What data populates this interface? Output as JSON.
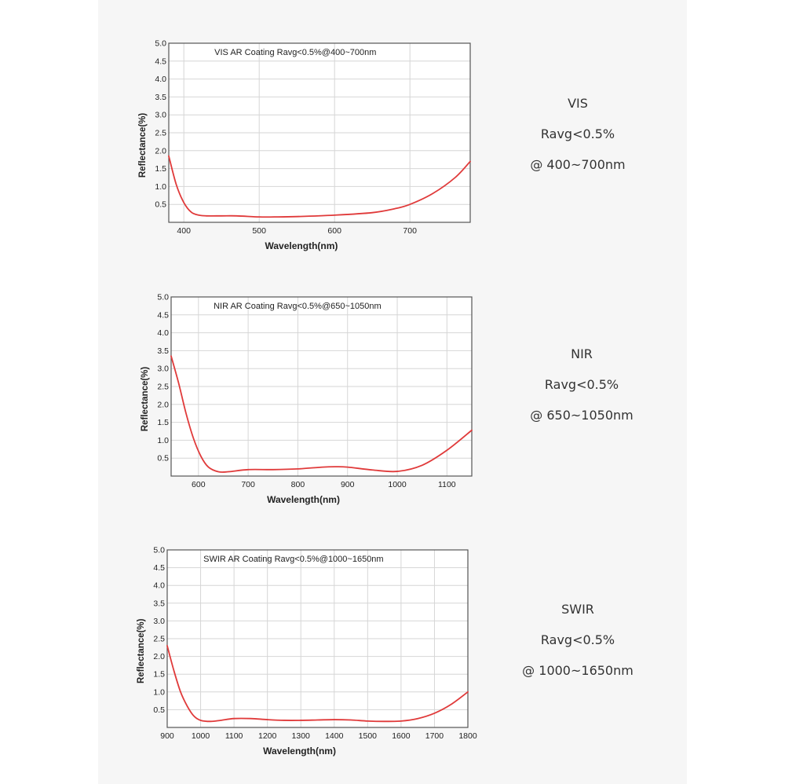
{
  "colors": {
    "panel_background": "#f6f6f6",
    "curve": "#e03a3a",
    "grid": "#d6d6d6",
    "frame": "#555555",
    "text": "#222222"
  },
  "chart_data": [
    {
      "type": "line",
      "title": "VIS AR Coating Ravg<0.5%@400~700nm",
      "xlabel": "Wavelength(nm)",
      "ylabel": "Reflectance(%)",
      "xlim": [
        380,
        780
      ],
      "ylim": [
        0,
        5
      ],
      "xticks": [
        400,
        500,
        600,
        700
      ],
      "yticks": [
        0.5,
        1.0,
        1.5,
        2.0,
        2.5,
        3.0,
        3.5,
        4.0,
        4.5,
        5.0
      ],
      "ytick_labels": [
        "0.5",
        "1.0",
        "1.5",
        "2.0",
        "2.5",
        "3.0",
        "3.5",
        "4.0",
        "4.5",
        "5.0"
      ],
      "grid": true,
      "series": [
        {
          "x": [
            380,
            390,
            400,
            410,
            420,
            430,
            450,
            470,
            500,
            520,
            550,
            600,
            650,
            680,
            700,
            730,
            760,
            780
          ],
          "y": [
            1.85,
            1.05,
            0.55,
            0.28,
            0.2,
            0.18,
            0.18,
            0.18,
            0.15,
            0.15,
            0.16,
            0.2,
            0.27,
            0.38,
            0.5,
            0.8,
            1.25,
            1.7
          ]
        }
      ]
    },
    {
      "type": "line",
      "title": "NIR AR Coating Ravg<0.5%@650~1050nm",
      "xlabel": "Wavelength(nm)",
      "ylabel": "Reflectance(%)",
      "xlim": [
        545,
        1150
      ],
      "ylim": [
        0,
        5
      ],
      "xticks": [
        600,
        700,
        800,
        900,
        1000,
        1100
      ],
      "yticks": [
        0.5,
        1.0,
        1.5,
        2.0,
        2.5,
        3.0,
        3.5,
        4.0,
        4.5,
        5.0
      ],
      "ytick_labels": [
        "0.5",
        "1.0",
        "1.5",
        "2.0",
        "2.5",
        "3.0",
        "3.5",
        "4.0",
        "4.5",
        "5.0"
      ],
      "grid": true,
      "series": [
        {
          "x": [
            545,
            560,
            575,
            590,
            605,
            620,
            640,
            660,
            700,
            750,
            800,
            850,
            875,
            900,
            950,
            1000,
            1050,
            1100,
            1150
          ],
          "y": [
            3.35,
            2.6,
            1.75,
            1.05,
            0.55,
            0.25,
            0.12,
            0.12,
            0.18,
            0.18,
            0.2,
            0.25,
            0.26,
            0.25,
            0.17,
            0.13,
            0.3,
            0.72,
            1.28
          ]
        }
      ]
    },
    {
      "type": "line",
      "title": "SWIR AR Coating Ravg<0.5%@1000~1650nm",
      "xlabel": "Wavelength(nm)",
      "ylabel": "Reflectance(%)",
      "xlim": [
        900,
        1800
      ],
      "ylim": [
        0,
        5
      ],
      "xticks": [
        900,
        1000,
        1100,
        1200,
        1300,
        1400,
        1500,
        1600,
        1700,
        1800
      ],
      "yticks": [
        0.5,
        1.0,
        1.5,
        2.0,
        2.5,
        3.0,
        3.5,
        4.0,
        4.5,
        5.0
      ],
      "ytick_labels": [
        "0.5",
        "1.0",
        "1.5",
        "2.0",
        "2.5",
        "3.0",
        "3.5",
        "4.0",
        "4.5",
        "5.0"
      ],
      "grid": true,
      "series": [
        {
          "x": [
            900,
            920,
            940,
            960,
            980,
            1000,
            1030,
            1060,
            1100,
            1150,
            1200,
            1250,
            1300,
            1350,
            1400,
            1450,
            1500,
            1550,
            1600,
            1650,
            1700,
            1750,
            1800
          ],
          "y": [
            2.3,
            1.6,
            1.0,
            0.6,
            0.32,
            0.2,
            0.17,
            0.2,
            0.25,
            0.25,
            0.22,
            0.2,
            0.2,
            0.21,
            0.22,
            0.21,
            0.18,
            0.17,
            0.18,
            0.25,
            0.4,
            0.65,
            1.0
          ]
        }
      ]
    }
  ],
  "side_labels": [
    {
      "band": "VIS",
      "spec": "Ravg<0.5%",
      "range": "@ 400~700nm"
    },
    {
      "band": "NIR",
      "spec": "Ravg<0.5%",
      "range": "@ 650~1050nm"
    },
    {
      "band": "SWIR",
      "spec": "Ravg<0.5%",
      "range": "@ 1000~1650nm"
    }
  ]
}
